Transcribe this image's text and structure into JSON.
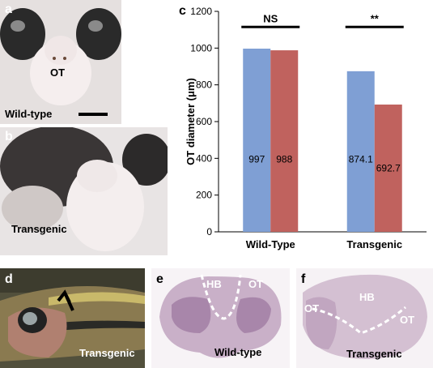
{
  "panels": {
    "a": {
      "label": "a",
      "texts": {
        "ot": "OT",
        "strain": "Wild-type"
      }
    },
    "b": {
      "label": "b",
      "texts": {
        "strain": "Transgenic"
      }
    },
    "c": {
      "label": "c"
    },
    "d": {
      "label": "d",
      "texts": {
        "strain": "Transgenic"
      }
    },
    "e": {
      "label": "e",
      "texts": {
        "hb": "HB",
        "ot": "OT",
        "strain": "Wild-type"
      }
    },
    "f": {
      "label": "f",
      "texts": {
        "ot_left": "OT",
        "hb": "HB",
        "ot_right": "OT",
        "strain": "Transgenic"
      }
    }
  },
  "colors": {
    "blue": "#7f9fd4",
    "red": "#c0625e",
    "axis": "#000000"
  },
  "chart_data": {
    "type": "bar",
    "title": "",
    "categories": [
      "Wild-Type",
      "Transgenic"
    ],
    "series": [
      {
        "values": [
          997,
          874.1
        ],
        "labels": [
          "997",
          "874.1"
        ],
        "color": "#7f9fd4"
      },
      {
        "values": [
          988,
          692.7
        ],
        "labels": [
          "988",
          "692.7"
        ],
        "color": "#c0625e"
      }
    ],
    "xlabel": "",
    "ylabel": "OT diameter (μm)",
    "ylim": [
      0,
      1200
    ],
    "yticks": [
      0,
      200,
      400,
      600,
      800,
      1000,
      1200
    ],
    "grid": false,
    "significance": [
      "NS",
      "**"
    ]
  }
}
